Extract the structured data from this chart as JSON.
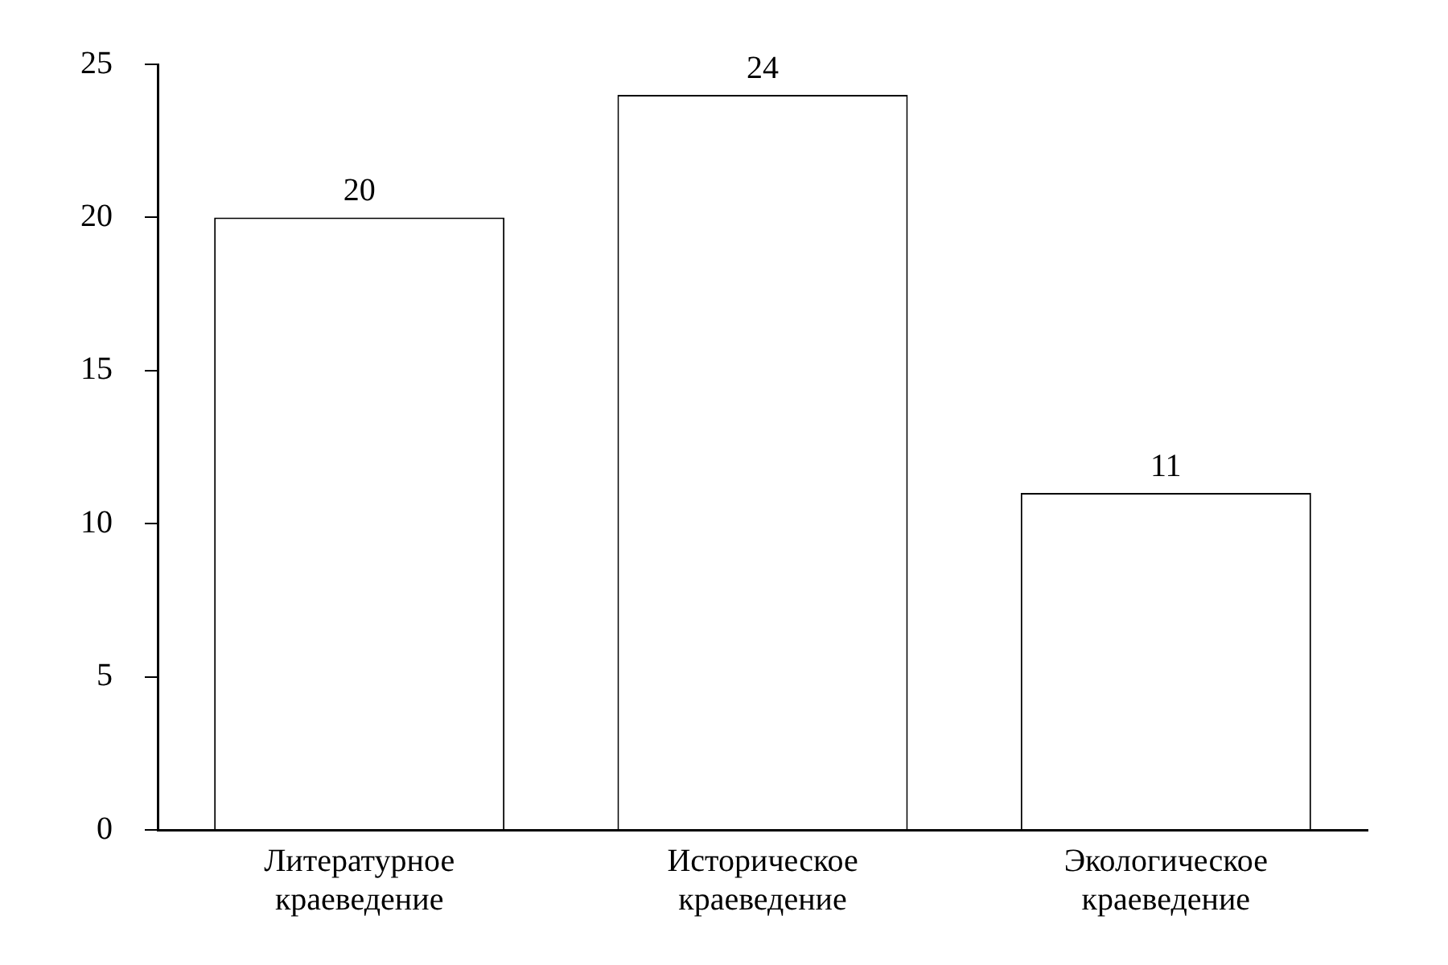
{
  "chart_data": {
    "type": "bar",
    "categories": [
      "Литературное краеведение",
      "Историческое краеведение",
      "Экологическое краеведение"
    ],
    "values": [
      20,
      24,
      11
    ],
    "colors": [
      "#ffffff",
      "#ffffff",
      "#ffffff"
    ],
    "ylim": [
      0,
      25
    ],
    "yticks": [
      0,
      5,
      10,
      15,
      20,
      25
    ],
    "grid": false,
    "legend": false,
    "data_labels": true
  }
}
